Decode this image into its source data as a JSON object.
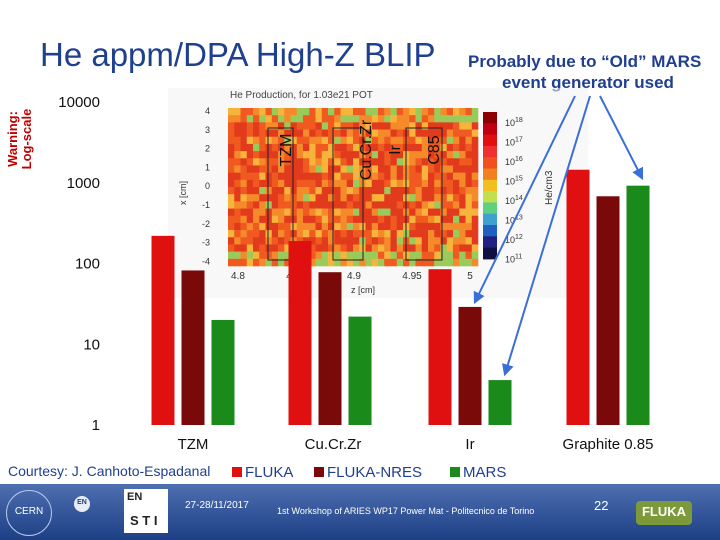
{
  "slide": {
    "title": "He appm/DPA High-Z BLIP",
    "note_line1": "Probably due to “Old” MARS",
    "note_line2": "event generator used",
    "warning_line1": "Warning:",
    "warning_line2": "Log-scale",
    "courtesy": "Courtesy: J. Canhoto-Espadanal"
  },
  "footer": {
    "date": "27-28/11/2017",
    "workshop": "1st Workshop of ARIES WP17 Power Mat - Politecnico de Torino",
    "page_number": "22",
    "cern_logo": "CERN",
    "en_logo": "EN",
    "ensti_logo_top": "EN",
    "ensti_logo_bottom": "S T I",
    "fluka_logo": "FLUKA"
  },
  "inset": {
    "title": "He Production, for 1.03e21 POT",
    "ylabel": "x [cm]",
    "xlabel": "z [cm]",
    "colorbar_label": "He/cm3",
    "y_ticks": [
      "4",
      "3",
      "2",
      "1",
      "0",
      "-1",
      "-2",
      "-3",
      "-4"
    ],
    "x_ticks": [
      "4.8",
      "4.85",
      "4.9",
      "4.95",
      "5"
    ],
    "colorbar_ticks": [
      "10^18",
      "10^17",
      "10^16",
      "10^15",
      "10^14",
      "10^13",
      "10^12",
      "10^11"
    ],
    "region_labels": [
      "TZM",
      "Cu.Cr.Zr",
      "Ir",
      "C85"
    ]
  },
  "colors": {
    "title_blue": "#1f3f8f",
    "warning_red": "#c00000",
    "fluka_red": "#e01010",
    "nres_darkred": "#7a0a0a",
    "mars_green": "#1a8a1a",
    "arrow_blue": "#3a6fd8"
  },
  "chart_data": {
    "type": "bar",
    "scale": "log",
    "ylim": [
      1,
      10000
    ],
    "y_ticks": [
      "10000",
      "1000",
      "100",
      "10",
      "1"
    ],
    "categories": [
      "TZM",
      "Cu.Cr.Zr",
      "Ir",
      "Graphite 0.85"
    ],
    "series": [
      {
        "name": "FLUKA",
        "color": "#e01010",
        "values": [
          220,
          190,
          85,
          1450
        ]
      },
      {
        "name": "FLUKA-NRES",
        "color": "#7a0a0a",
        "values": [
          82,
          78,
          29,
          680
        ]
      },
      {
        "name": "MARS",
        "color": "#1a8a1a",
        "values": [
          20,
          22,
          3.6,
          920
        ]
      }
    ],
    "legend_position": "bottom",
    "grid": false
  }
}
